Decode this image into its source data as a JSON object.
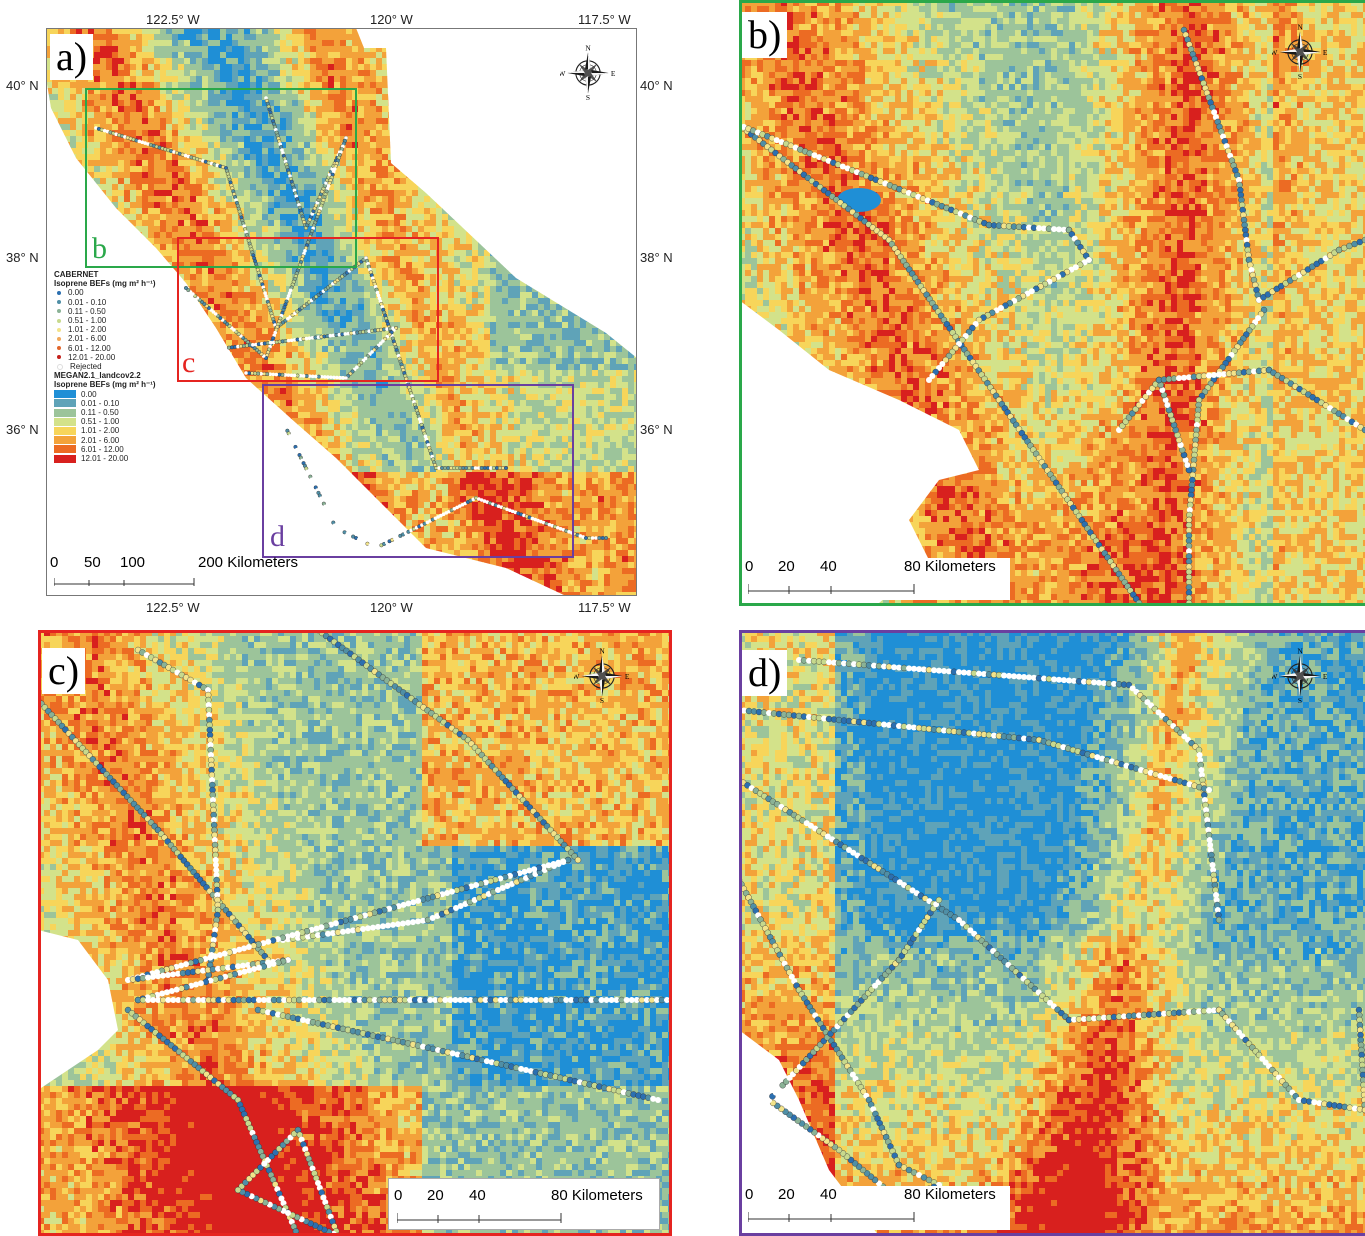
{
  "panels": {
    "a": {
      "label": "a)",
      "coords": {
        "top": [
          "122.5° W",
          "120° W",
          "117.5° W"
        ],
        "bottom": [
          "122.5° W",
          "120° W",
          "117.5° W"
        ],
        "left": [
          "40° N",
          "38° N",
          "36° N"
        ],
        "right": [
          "40° N",
          "38° N",
          "36° N"
        ]
      },
      "inset_labels": {
        "b": "b",
        "c": "c",
        "d": "d"
      },
      "scale": {
        "ticks": [
          "0",
          "50",
          "100"
        ],
        "end": "200 Kilometers"
      },
      "legend": {
        "title1": "CABERNET",
        "subtitle1": "Isoprene BEFs (mg m² h⁻¹)",
        "points": [
          "0.00",
          "0.01 - 0.10",
          "0.11 - 0.50",
          "0.51 - 1.00",
          "1.01 - 2.00",
          "2.01 - 6.00",
          "6.01 - 12.00",
          "12.01 - 20.00",
          "Rejected"
        ],
        "title2": "MEGAN2.1_landcov2.2",
        "subtitle2": "Isoprene BEFs (mg m² h⁻¹)",
        "classes": [
          "0.00",
          "0.01 - 0.10",
          "0.11 - 0.50",
          "0.51 - 1.00",
          "1.01 - 2.00",
          "2.01 - 6.00",
          "6.01 - 12.00",
          "12.01 - 20.00"
        ]
      }
    },
    "b": {
      "label": "b)",
      "scale": {
        "ticks": [
          "0",
          "20",
          "40"
        ],
        "end": "80 Kilometers"
      }
    },
    "c": {
      "label": "c)",
      "scale": {
        "ticks": [
          "0",
          "20",
          "40"
        ],
        "end": "80 Kilometers"
      }
    },
    "d": {
      "label": "d)",
      "scale": {
        "ticks": [
          "0",
          "20",
          "40"
        ],
        "end": "80 Kilometers"
      }
    }
  },
  "compass": {
    "n": "N",
    "s": "S",
    "e": "E",
    "w": "W"
  },
  "colors": {
    "class_colors": [
      "#1f8fd6",
      "#5fa3b8",
      "#9cc49a",
      "#d3e28a",
      "#f7d55a",
      "#f3a23a",
      "#ec6b23",
      "#d8201e"
    ],
    "point_colors": [
      "#2b6fb0",
      "#4f8fa6",
      "#8ab296",
      "#c7d98d",
      "#f2e38a",
      "#f1a85a",
      "#e2662c",
      "#c4201c"
    ],
    "frame_b": "#2aa84a",
    "frame_c": "#e52420",
    "frame_d": "#6a3fa0"
  }
}
